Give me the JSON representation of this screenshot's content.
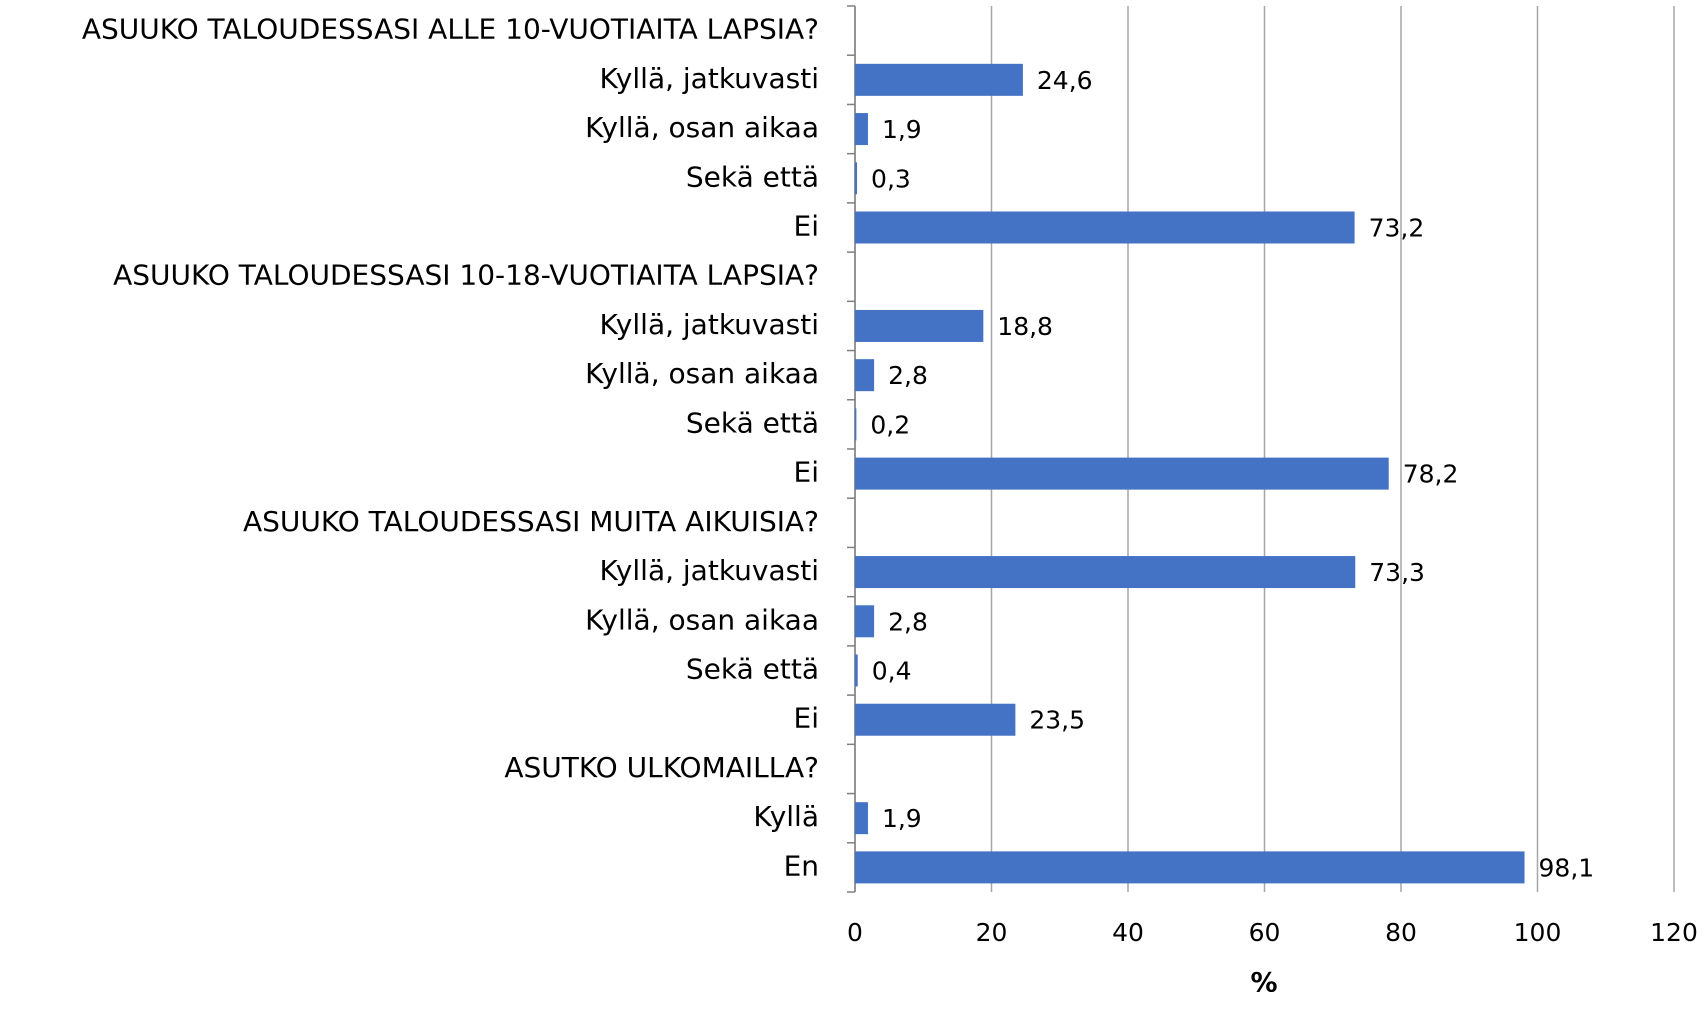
{
  "chart_data": {
    "type": "bar",
    "orientation": "horizontal",
    "categories": [
      "ASUUKO TALOUDESSASI ALLE 10-VUOTIAITA LAPSIA?",
      "Kyllä, jatkuvasti",
      "Kyllä, osan aikaa",
      "Sekä että",
      "Ei",
      "ASUUKO TALOUDESSASI 10-18-VUOTIAITA LAPSIA?",
      "Kyllä, jatkuvasti",
      "Kyllä, osan aikaa",
      "Sekä että",
      "Ei",
      "ASUUKO TALOUDESSASI MUITA AIKUISIA?",
      "Kyllä, jatkuvasti",
      "Kyllä, osan aikaa",
      "Sekä että",
      "Ei",
      "ASUTKO ULKOMAILLA?",
      "Kyllä",
      "En"
    ],
    "values": [
      null,
      24.6,
      1.9,
      0.3,
      73.2,
      null,
      18.8,
      2.8,
      0.2,
      78.2,
      null,
      73.3,
      2.8,
      0.4,
      23.5,
      null,
      1.9,
      98.1
    ],
    "value_labels": [
      null,
      "24,6",
      "1,9",
      "0,3",
      "73,2",
      null,
      "18,8",
      "2,8",
      "0,2",
      "78,2",
      null,
      "73,3",
      "2,8",
      "0,4",
      "23,5",
      null,
      "1,9",
      "98,1"
    ],
    "color": "#4472c4",
    "x_label": "%",
    "xlim": [
      0,
      120
    ],
    "xticks": [
      0,
      20,
      40,
      60,
      80,
      100,
      120
    ],
    "grid": true
  }
}
